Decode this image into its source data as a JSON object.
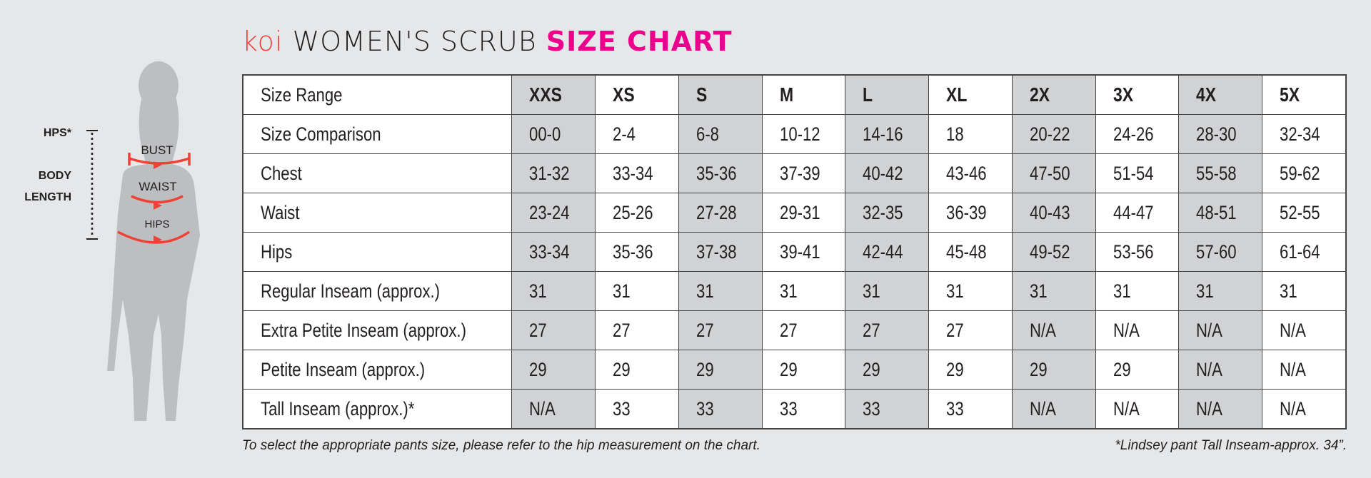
{
  "title": {
    "brand": "koi",
    "main": "WOMEN'S SCRUB",
    "accent": "SIZE CHART"
  },
  "colors": {
    "brand": "#ef4136",
    "accent": "#ec008c",
    "shaded_column": "#d1d2d4",
    "measure_arrow": "#ef4136"
  },
  "figure": {
    "hps": "HPS*",
    "body_length_1": "BODY",
    "body_length_2": "LENGTH",
    "bust": "BUST",
    "waist": "WAIST",
    "hips": "HIPS"
  },
  "table": {
    "rows": [
      {
        "label": "Size Range",
        "values": [
          "XXS",
          "XS",
          "S",
          "M",
          "L",
          "XL",
          "2X",
          "3X",
          "4X",
          "5X"
        ]
      },
      {
        "label": "Size Comparison",
        "values": [
          "00-0",
          "2-4",
          "6-8",
          "10-12",
          "14-16",
          "18",
          "20-22",
          "24-26",
          "28-30",
          "32-34"
        ]
      },
      {
        "label": "Chest",
        "values": [
          "31-32",
          "33-34",
          "35-36",
          "37-39",
          "40-42",
          "43-46",
          "47-50",
          "51-54",
          "55-58",
          "59-62"
        ]
      },
      {
        "label": "Waist",
        "values": [
          "23-24",
          "25-26",
          "27-28",
          "29-31",
          "32-35",
          "36-39",
          "40-43",
          "44-47",
          "48-51",
          "52-55"
        ]
      },
      {
        "label": "Hips",
        "values": [
          "33-34",
          "35-36",
          "37-38",
          "39-41",
          "42-44",
          "45-48",
          "49-52",
          "53-56",
          "57-60",
          "61-64"
        ]
      },
      {
        "label": "Regular Inseam (approx.)",
        "values": [
          "31",
          "31",
          "31",
          "31",
          "31",
          "31",
          "31",
          "31",
          "31",
          "31"
        ]
      },
      {
        "label": "Extra Petite Inseam (approx.)",
        "values": [
          "27",
          "27",
          "27",
          "27",
          "27",
          "27",
          "N/A",
          "N/A",
          "N/A",
          "N/A"
        ]
      },
      {
        "label": "Petite Inseam (approx.)",
        "values": [
          "29",
          "29",
          "29",
          "29",
          "29",
          "29",
          "29",
          "29",
          "N/A",
          "N/A"
        ]
      },
      {
        "label": "Tall Inseam (approx.)*",
        "values": [
          "N/A",
          "33",
          "33",
          "33",
          "33",
          "33",
          "N/A",
          "N/A",
          "N/A",
          "N/A"
        ]
      }
    ]
  },
  "footer": {
    "left": "To select the appropriate pants size, please refer to the hip measurement on the chart.",
    "right": "*Lindsey pant Tall Inseam-approx. 34”."
  }
}
